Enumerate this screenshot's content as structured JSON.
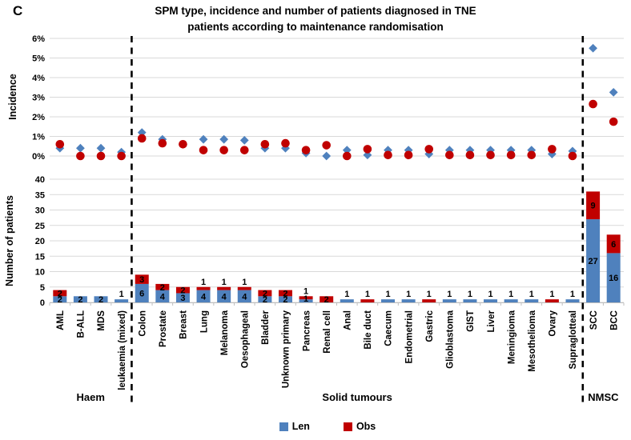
{
  "panel_label": "C",
  "header": {
    "title_line1": "SPM type, incidence and number of patients diagnosed in TNE",
    "title_line2": "patients according to maintenance randomisation"
  },
  "colors": {
    "len": "#4F81BD",
    "obs": "#C00000",
    "gridline": "#D9D9D9",
    "axis": "#BFBFBF",
    "separator": "#000000"
  },
  "legend": [
    {
      "name": "Len"
    },
    {
      "name": "Obs"
    }
  ],
  "chart_data": {
    "type": "combo",
    "title": "SPM type, incidence and number of patients diagnosed in TNE patients according to maintenance randomisation",
    "categories": [
      "AML",
      "B-ALL",
      "MDS",
      "leukaemia (mixed)",
      "Colon",
      "Prostate",
      "Breast",
      "Lung",
      "Melanoma",
      "Oesophageal",
      "Bladder",
      "Unknown primary",
      "Pancreas",
      "Renal cell",
      "Anal",
      "Bile duct",
      "Caecum",
      "Endometrial",
      "Gastric",
      "Glioblastoma",
      "GIST",
      "Liver",
      "Meningioma",
      "Mesothelioma",
      "Ovary",
      "Supraglotteal",
      "SCC",
      "BCC"
    ],
    "category_groups": [
      {
        "label": "Haem",
        "start": 0,
        "end": 3
      },
      {
        "label": "Solid tumours",
        "start": 4,
        "end": 25
      },
      {
        "label": "NMSC",
        "start": 26,
        "end": 27
      }
    ],
    "separators_after_index": [
      3,
      25
    ],
    "gridlines": true,
    "legend_position": "bottom",
    "incidence_panel": {
      "type": "scatter",
      "ylabel": "Incidence",
      "ylim": [
        0,
        6
      ],
      "tick_labels": [
        "0%",
        "1%",
        "2%",
        "3%",
        "4%",
        "5%",
        "6%"
      ],
      "series": [
        {
          "name": "Len",
          "marker": "diamond",
          "values": [
            0.4,
            0.4,
            0.4,
            0.2,
            1.2,
            0.85,
            0.6,
            0.85,
            0.85,
            0.8,
            0.4,
            0.4,
            0.15,
            0,
            0.3,
            0.05,
            0.3,
            0.3,
            0.1,
            0.3,
            0.3,
            0.3,
            0.3,
            0.3,
            0.1,
            0.25,
            5.5,
            3.25
          ]
        },
        {
          "name": "Obs",
          "marker": "circle",
          "values": [
            0.6,
            0,
            0,
            0,
            0.9,
            0.65,
            0.6,
            0.3,
            0.3,
            0.3,
            0.6,
            0.65,
            0.3,
            0.55,
            0,
            0.35,
            0.05,
            0.05,
            0.35,
            0.05,
            0.05,
            0.05,
            0.05,
            0.05,
            0.35,
            0,
            2.65,
            1.75
          ]
        }
      ]
    },
    "patients_panel": {
      "type": "stacked-bar",
      "ylabel": "Number of patients",
      "ylim": [
        0,
        40
      ],
      "tick_step": 5,
      "series": [
        {
          "name": "Len",
          "values": [
            2,
            2,
            2,
            1,
            6,
            4,
            3,
            4,
            4,
            4,
            2,
            2,
            1,
            0,
            1,
            0,
            1,
            1,
            0,
            1,
            1,
            1,
            1,
            1,
            0,
            1,
            27,
            16
          ]
        },
        {
          "name": "Obs",
          "values": [
            2,
            0,
            0,
            0,
            3,
            2,
            2,
            1,
            1,
            1,
            2,
            2,
            1,
            2,
            0,
            1,
            0,
            0,
            1,
            0,
            0,
            0,
            0,
            0,
            1,
            0,
            9,
            6
          ]
        }
      ]
    }
  }
}
